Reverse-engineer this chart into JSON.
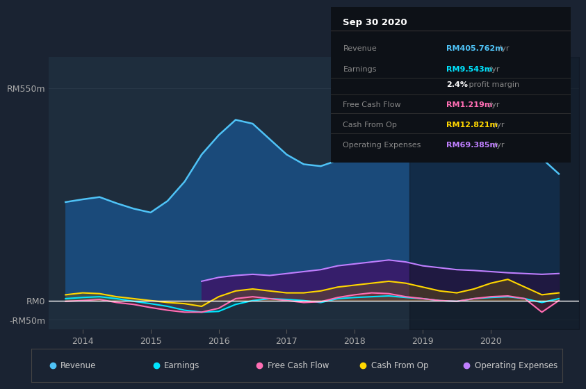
{
  "bg_color": "#1a2332",
  "plot_bg_color": "#1e2d3d",
  "info_box_bg": "#0d1117",
  "info_box_title": "Sep 30 2020",
  "info_box_rows": [
    {
      "label": "Revenue",
      "value": "RM405.762m",
      "unit": " /yr",
      "value_color": "#4fc3f7"
    },
    {
      "label": "Earnings",
      "value": "RM9.543m",
      "unit": " /yr",
      "value_color": "#00e5ff"
    },
    {
      "label": "",
      "value": "2.4%",
      "unit": " profit margin",
      "value_color": "#ffffff"
    },
    {
      "label": "Free Cash Flow",
      "value": "RM1.219m",
      "unit": " /yr",
      "value_color": "#ff6eb4"
    },
    {
      "label": "Cash From Op",
      "value": "RM12.821m",
      "unit": " /yr",
      "value_color": "#ffd700"
    },
    {
      "label": "Operating Expenses",
      "value": "RM69.385m",
      "unit": " /yr",
      "value_color": "#bf7fff"
    }
  ],
  "ylim": [
    -75,
    630
  ],
  "xlim_start": 2013.5,
  "xlim_end": 2021.3,
  "xticks": [
    2014,
    2015,
    2016,
    2017,
    2018,
    2019,
    2020
  ],
  "ytick_positions": [
    -50,
    0,
    550
  ],
  "ytick_labels": [
    "-RM50m",
    "RM0",
    "RM550m"
  ],
  "grid_color": "#2a3a4a",
  "zero_line_color": "#ffffff",
  "dark_overlay_x_start": 2018.8,
  "legend": [
    {
      "label": "Revenue",
      "color": "#4fc3f7"
    },
    {
      "label": "Earnings",
      "color": "#00e5ff"
    },
    {
      "label": "Free Cash Flow",
      "color": "#ff6eb4"
    },
    {
      "label": "Cash From Op",
      "color": "#ffd700"
    },
    {
      "label": "Operating Expenses",
      "color": "#bf7fff"
    }
  ],
  "revenue": {
    "color": "#4fc3f7",
    "fill_color": "#1a4a7a",
    "x": [
      2013.75,
      2014.0,
      2014.25,
      2014.5,
      2014.75,
      2015.0,
      2015.25,
      2015.5,
      2015.75,
      2016.0,
      2016.25,
      2016.5,
      2016.75,
      2017.0,
      2017.25,
      2017.5,
      2017.75,
      2018.0,
      2018.25,
      2018.5,
      2018.75,
      2019.0,
      2019.25,
      2019.5,
      2019.75,
      2020.0,
      2020.25,
      2020.5,
      2020.75,
      2021.0
    ],
    "y": [
      255,
      262,
      268,
      252,
      238,
      228,
      258,
      308,
      378,
      428,
      468,
      458,
      418,
      378,
      353,
      348,
      363,
      388,
      428,
      468,
      508,
      518,
      498,
      468,
      438,
      428,
      428,
      418,
      368,
      328
    ]
  },
  "earnings": {
    "color": "#00e5ff",
    "fill_color": "#007070",
    "x": [
      2013.75,
      2014.0,
      2014.25,
      2014.5,
      2014.75,
      2015.0,
      2015.25,
      2015.5,
      2015.75,
      2016.0,
      2016.25,
      2016.5,
      2016.75,
      2017.0,
      2017.25,
      2017.5,
      2017.75,
      2018.0,
      2018.25,
      2018.5,
      2018.75,
      2019.0,
      2019.25,
      2019.5,
      2019.75,
      2020.0,
      2020.25,
      2020.5,
      2020.75,
      2021.0
    ],
    "y": [
      5,
      8,
      10,
      5,
      -2,
      -8,
      -15,
      -25,
      -30,
      -28,
      -10,
      0,
      5,
      3,
      0,
      -5,
      5,
      8,
      10,
      12,
      8,
      5,
      0,
      -2,
      5,
      8,
      10,
      5,
      -5,
      5
    ]
  },
  "free_cash_flow": {
    "color": "#ff6eb4",
    "fill_color": "#802040",
    "x": [
      2013.75,
      2014.0,
      2014.25,
      2014.5,
      2014.75,
      2015.0,
      2015.25,
      2015.5,
      2015.75,
      2016.0,
      2016.25,
      2016.5,
      2016.75,
      2017.0,
      2017.25,
      2017.5,
      2017.75,
      2018.0,
      2018.25,
      2018.5,
      2018.75,
      2019.0,
      2019.25,
      2019.5,
      2019.75,
      2020.0,
      2020.25,
      2020.5,
      2020.75,
      2021.0
    ],
    "y": [
      -2,
      0,
      3,
      -5,
      -10,
      -18,
      -25,
      -30,
      -30,
      -20,
      5,
      10,
      5,
      0,
      -5,
      -3,
      8,
      15,
      20,
      18,
      10,
      5,
      0,
      -2,
      5,
      10,
      12,
      5,
      -30,
      0
    ]
  },
  "cash_from_op": {
    "color": "#ffd700",
    "fill_color": "#806000",
    "x": [
      2013.75,
      2014.0,
      2014.25,
      2014.5,
      2014.75,
      2015.0,
      2015.25,
      2015.5,
      2015.75,
      2016.0,
      2016.25,
      2016.5,
      2016.75,
      2017.0,
      2017.25,
      2017.5,
      2017.75,
      2018.0,
      2018.25,
      2018.5,
      2018.75,
      2019.0,
      2019.25,
      2019.5,
      2019.75,
      2020.0,
      2020.25,
      2020.5,
      2020.75,
      2021.0
    ],
    "y": [
      15,
      20,
      18,
      10,
      5,
      0,
      -5,
      -8,
      -15,
      10,
      25,
      30,
      25,
      20,
      20,
      25,
      35,
      40,
      45,
      50,
      45,
      35,
      25,
      20,
      30,
      45,
      55,
      35,
      15,
      20
    ]
  },
  "operating_expenses": {
    "color": "#bf7fff",
    "fill_color": "#3a1a6a",
    "x": [
      2015.75,
      2016.0,
      2016.25,
      2016.5,
      2016.75,
      2017.0,
      2017.25,
      2017.5,
      2017.75,
      2018.0,
      2018.25,
      2018.5,
      2018.75,
      2019.0,
      2019.25,
      2019.5,
      2019.75,
      2020.0,
      2020.25,
      2020.5,
      2020.75,
      2021.0
    ],
    "y": [
      50,
      60,
      65,
      68,
      65,
      70,
      75,
      80,
      90,
      95,
      100,
      105,
      100,
      90,
      85,
      80,
      78,
      75,
      72,
      70,
      68,
      70
    ]
  }
}
